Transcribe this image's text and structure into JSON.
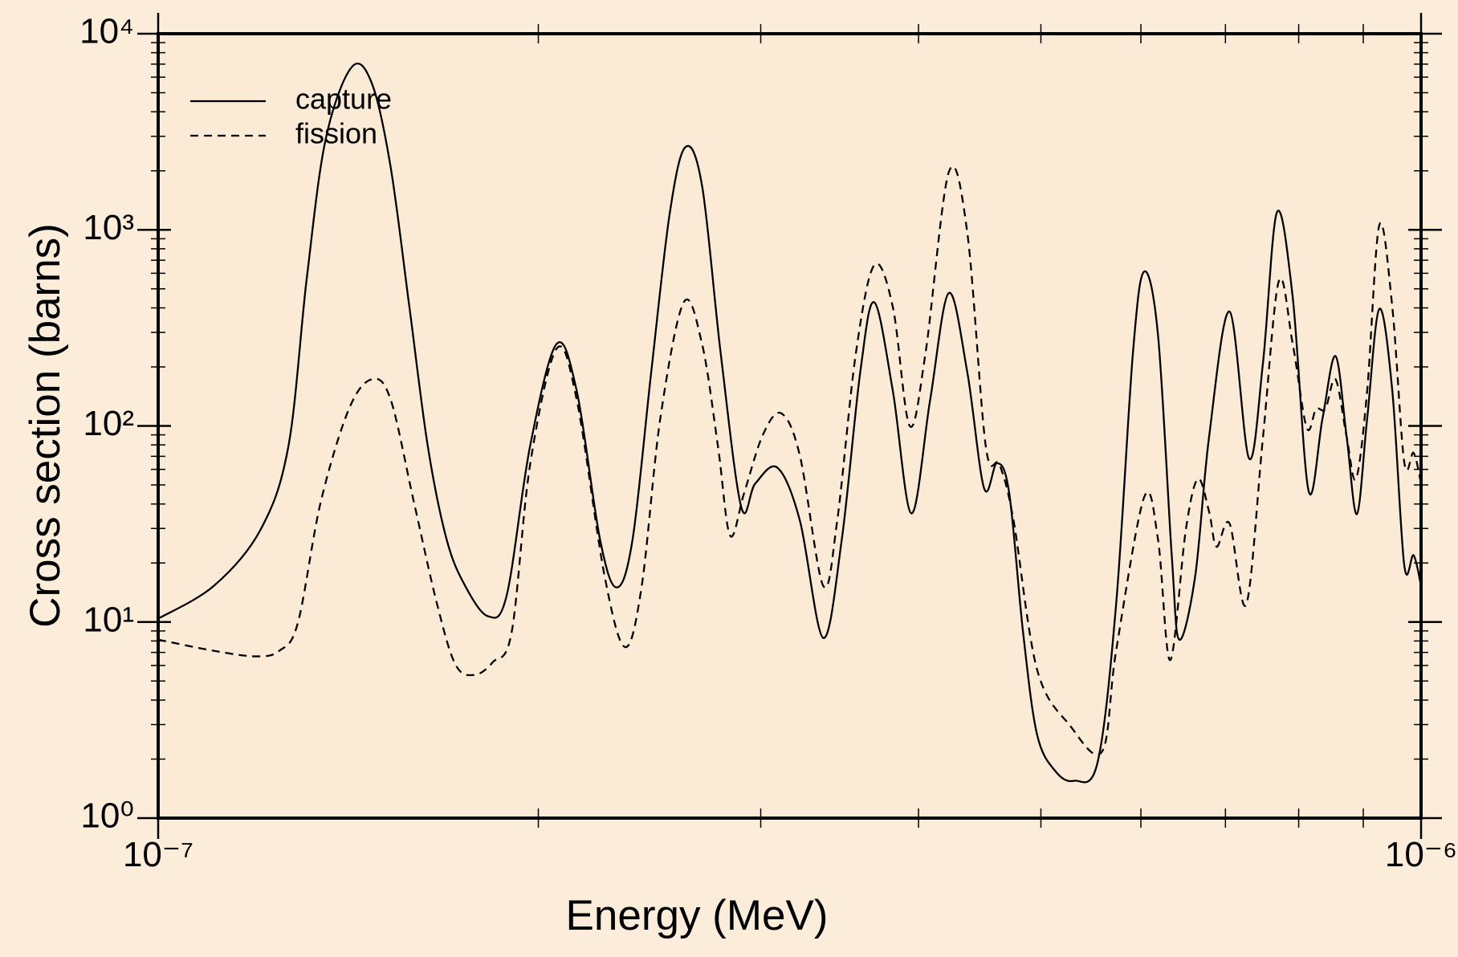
{
  "chart_data": {
    "type": "line",
    "xlabel": "Energy (MeV)",
    "ylabel": "Cross section (barns)",
    "xscale": "log",
    "yscale": "log",
    "xlim": [
      1e-07,
      1e-06
    ],
    "ylim": [
      1,
      10000
    ],
    "xticks": [
      {
        "value": 1e-07,
        "label": "10⁻⁷"
      },
      {
        "value": 1e-06,
        "label": "10⁻⁶"
      }
    ],
    "yticks": [
      {
        "value": 1,
        "label": "10⁰"
      },
      {
        "value": 10,
        "label": "10¹"
      },
      {
        "value": 100,
        "label": "10²"
      },
      {
        "value": 1000,
        "label": "10³"
      },
      {
        "value": 10000,
        "label": "10⁴"
      }
    ],
    "legend": "upper left",
    "plot_background": "#faead6",
    "series": [
      {
        "name": "capture",
        "color": "#000000",
        "linestyle": "solid",
        "x": [
          1e-07,
          1.107e-07,
          1.205e-07,
          1.268e-07,
          1.311e-07,
          1.357e-07,
          1.423e-07,
          1.477e-07,
          1.528e-07,
          1.581e-07,
          1.635e-07,
          1.692e-07,
          1.75e-07,
          1.825e-07,
          1.888e-07,
          1.97e-07,
          2.067e-07,
          2.145e-07,
          2.238e-07,
          2.307e-07,
          2.375e-07,
          2.457e-07,
          2.541e-07,
          2.615e-07,
          2.696e-07,
          2.789e-07,
          2.895e-07,
          2.97e-07,
          3.093e-07,
          3.222e-07,
          3.362e-07,
          3.478e-07,
          3.597e-07,
          3.69e-07,
          3.817e-07,
          3.949e-07,
          4.086e-07,
          4.227e-07,
          4.372e-07,
          4.508e-07,
          4.616e-07,
          4.719e-07,
          4.84e-07,
          4.965e-07,
          5.136e-07,
          5.314e-07,
          5.544e-07,
          5.735e-07,
          5.913e-07,
          6.035e-07,
          6.19e-07,
          6.349e-07,
          6.435e-07,
          6.624e-07,
          6.794e-07,
          7.053e-07,
          7.308e-07,
          7.496e-07,
          7.69e-07,
          7.914e-07,
          8.146e-07,
          8.355e-07,
          8.556e-07,
          8.732e-07,
          8.896e-07,
          9.064e-07,
          9.267e-07,
          9.489e-07,
          9.698e-07,
          9.865e-07,
          1e-06
        ],
        "values": [
          10.4,
          15.3,
          29.5,
          78.7,
          561,
          2884,
          6750,
          5546,
          2080,
          404,
          78.7,
          26.4,
          15.3,
          10.7,
          13.7,
          78.7,
          261,
          151,
          26.4,
          15.0,
          26.4,
          188,
          1205,
          2642,
          1671,
          234,
          38.7,
          50.8,
          61.2,
          32.9,
          8.3,
          26.4,
          188,
          427,
          151,
          35.8,
          136,
          476,
          188,
          48.1,
          64.6,
          45.6,
          8.87,
          2.67,
          1.73,
          1.55,
          1.92,
          12.3,
          234,
          612,
          291,
          21.2,
          8.13,
          17.1,
          87.7,
          383,
          68.2,
          210,
          1231,
          451,
          46.6,
          109,
          227,
          87.7,
          35.5,
          109,
          395,
          151,
          19.5,
          21.9,
          15.3
        ]
      },
      {
        "name": "fission",
        "color": "#000000",
        "linestyle": "dashed",
        "x": [
          1e-07,
          1.107e-07,
          1.195e-07,
          1.247e-07,
          1.29e-07,
          1.345e-07,
          1.416e-07,
          1.477e-07,
          1.528e-07,
          1.594e-07,
          1.663e-07,
          1.72e-07,
          1.78e-07,
          1.841e-07,
          1.905e-07,
          1.97e-07,
          2.067e-07,
          2.145e-07,
          2.257e-07,
          2.343e-07,
          2.415e-07,
          2.498e-07,
          2.607e-07,
          2.696e-07,
          2.775e-07,
          2.837e-07,
          2.911e-07,
          3.011e-07,
          3.114e-07,
          3.222e-07,
          3.362e-07,
          3.449e-07,
          3.568e-07,
          3.69e-07,
          3.817e-07,
          3.936e-07,
          4.051e-07,
          4.227e-07,
          4.372e-07,
          4.522e-07,
          4.638e-07,
          4.757e-07,
          4.965e-07,
          5.269e-07,
          5.591e-07,
          5.735e-07,
          6.035e-07,
          6.19e-07,
          6.329e-07,
          6.512e-07,
          6.657e-07,
          6.794e-07,
          6.887e-07,
          7.053e-07,
          7.271e-07,
          7.496e-07,
          7.716e-07,
          7.914e-07,
          8.118e-07,
          8.258e-07,
          8.399e-07,
          8.556e-07,
          8.732e-07,
          8.882e-07,
          9.064e-07,
          9.267e-07,
          9.489e-07,
          9.698e-07,
          9.865e-07,
          1e-06
        ],
        "values": [
          8.13,
          7.13,
          6.68,
          7.13,
          9.89,
          40.9,
          122,
          173,
          136,
          40.9,
          12.3,
          6.05,
          5.37,
          6.25,
          8.87,
          63.2,
          247,
          136,
          17.1,
          7.45,
          15.3,
          109,
          427,
          261,
          78.7,
          27.6,
          45.6,
          89.7,
          116,
          70.5,
          15.3,
          32.9,
          234,
          661,
          404,
          100,
          234,
          1968,
          968,
          78.7,
          63.2,
          32.9,
          5.73,
          2.98,
          2.19,
          7.13,
          43.2,
          26.4,
          6.39,
          29.5,
          53.7,
          36.6,
          24.2,
          31.8,
          12.3,
          87.7,
          549,
          261,
          97.9,
          122,
          122,
          173,
          87.7,
          53.7,
          151,
          1057,
          404,
          65.3,
          72.9,
          50.8
        ]
      }
    ]
  }
}
